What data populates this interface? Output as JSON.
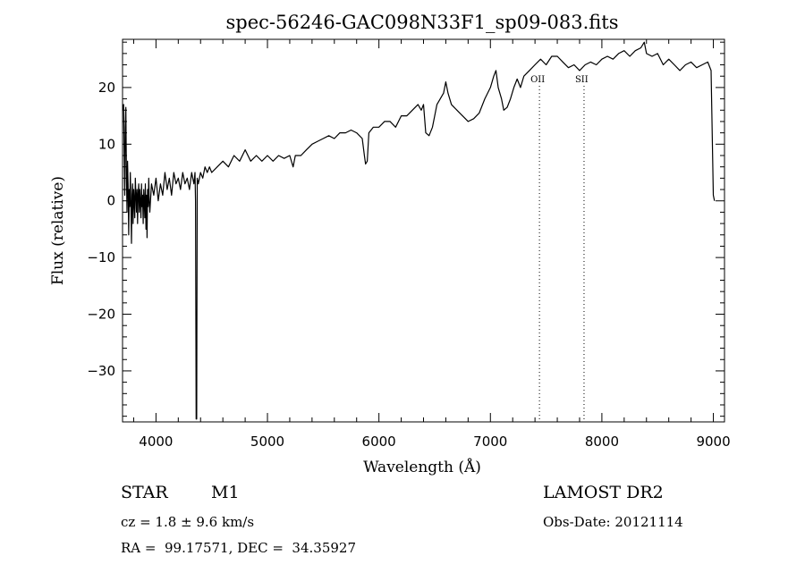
{
  "chart_data": {
    "type": "line",
    "title": "spec-56246-GAC098N33F1_sp09-083.fits",
    "xlabel": "Wavelength (Å)",
    "ylabel": "Flux (relative)",
    "xlim": [
      3700,
      9100
    ],
    "ylim": [
      -39,
      28.5
    ],
    "x_ticks": [
      4000,
      5000,
      6000,
      7000,
      8000,
      9000
    ],
    "y_ticks": [
      -30,
      -20,
      -10,
      0,
      10,
      20
    ],
    "x_tick_labels": [
      "4000",
      "5000",
      "6000",
      "7000",
      "8000",
      "9000"
    ],
    "y_tick_labels": [
      "−30",
      "−20",
      "−10",
      "0",
      "10",
      "20"
    ],
    "spectral_lines": [
      {
        "label": "OII",
        "wavelength": 7440
      },
      {
        "label": "SII",
        "wavelength": 7840
      }
    ],
    "series": [
      {
        "name": "flux",
        "points": [
          [
            3700,
            16
          ],
          [
            3710,
            17
          ],
          [
            3715,
            8
          ],
          [
            3720,
            1
          ],
          [
            3725,
            13
          ],
          [
            3730,
            16.5
          ],
          [
            3735,
            4
          ],
          [
            3740,
            -2
          ],
          [
            3745,
            7
          ],
          [
            3750,
            3
          ],
          [
            3755,
            -6
          ],
          [
            3760,
            2
          ],
          [
            3765,
            -1
          ],
          [
            3770,
            5
          ],
          [
            3775,
            0
          ],
          [
            3780,
            -7.5
          ],
          [
            3785,
            1
          ],
          [
            3790,
            3
          ],
          [
            3795,
            -4
          ],
          [
            3800,
            2
          ],
          [
            3805,
            0
          ],
          [
            3810,
            -3
          ],
          [
            3815,
            4
          ],
          [
            3820,
            1
          ],
          [
            3825,
            -2
          ],
          [
            3830,
            2
          ],
          [
            3835,
            -4
          ],
          [
            3840,
            1
          ],
          [
            3845,
            3
          ],
          [
            3850,
            -2
          ],
          [
            3855,
            2
          ],
          [
            3860,
            0
          ],
          [
            3865,
            -3
          ],
          [
            3870,
            3
          ],
          [
            3875,
            -1
          ],
          [
            3880,
            1
          ],
          [
            3885,
            -4
          ],
          [
            3890,
            2
          ],
          [
            3895,
            0
          ],
          [
            3900,
            -3
          ],
          [
            3905,
            3
          ],
          [
            3910,
            -5
          ],
          [
            3915,
            1
          ],
          [
            3920,
            -6.5
          ],
          [
            3925,
            2
          ],
          [
            3930,
            -1
          ],
          [
            3935,
            4
          ],
          [
            3940,
            0
          ],
          [
            3945,
            -2
          ],
          [
            3960,
            3
          ],
          [
            3980,
            1
          ],
          [
            4000,
            4
          ],
          [
            4020,
            0
          ],
          [
            4040,
            3
          ],
          [
            4060,
            1
          ],
          [
            4080,
            5
          ],
          [
            4100,
            2
          ],
          [
            4120,
            4
          ],
          [
            4140,
            1
          ],
          [
            4160,
            5
          ],
          [
            4180,
            3
          ],
          [
            4200,
            4
          ],
          [
            4220,
            2
          ],
          [
            4240,
            5
          ],
          [
            4260,
            3
          ],
          [
            4280,
            4
          ],
          [
            4300,
            2
          ],
          [
            4320,
            5
          ],
          [
            4330,
            4
          ],
          [
            4340,
            3
          ],
          [
            4350,
            5
          ],
          [
            4355,
            0
          ],
          [
            4360,
            -38.5
          ],
          [
            4365,
            -38.5
          ],
          [
            4370,
            4
          ],
          [
            4380,
            3
          ],
          [
            4400,
            5
          ],
          [
            4420,
            4
          ],
          [
            4440,
            6
          ],
          [
            4460,
            5
          ],
          [
            4480,
            6
          ],
          [
            4500,
            5
          ],
          [
            4550,
            6
          ],
          [
            4600,
            7
          ],
          [
            4650,
            6
          ],
          [
            4700,
            8
          ],
          [
            4750,
            7
          ],
          [
            4800,
            9
          ],
          [
            4850,
            7
          ],
          [
            4900,
            8
          ],
          [
            4950,
            7
          ],
          [
            5000,
            8
          ],
          [
            5050,
            7
          ],
          [
            5100,
            8
          ],
          [
            5150,
            7.5
          ],
          [
            5200,
            8
          ],
          [
            5230,
            6
          ],
          [
            5250,
            8
          ],
          [
            5300,
            8
          ],
          [
            5350,
            9
          ],
          [
            5400,
            10
          ],
          [
            5450,
            10.5
          ],
          [
            5500,
            11
          ],
          [
            5550,
            11.5
          ],
          [
            5600,
            11
          ],
          [
            5650,
            12
          ],
          [
            5700,
            12
          ],
          [
            5750,
            12.5
          ],
          [
            5800,
            12
          ],
          [
            5850,
            11
          ],
          [
            5870,
            8
          ],
          [
            5880,
            6.5
          ],
          [
            5895,
            7
          ],
          [
            5910,
            12
          ],
          [
            5950,
            13
          ],
          [
            6000,
            13
          ],
          [
            6050,
            14
          ],
          [
            6100,
            14
          ],
          [
            6150,
            13
          ],
          [
            6200,
            15
          ],
          [
            6250,
            15
          ],
          [
            6300,
            16
          ],
          [
            6350,
            17
          ],
          [
            6380,
            16
          ],
          [
            6400,
            17
          ],
          [
            6420,
            12
          ],
          [
            6450,
            11.5
          ],
          [
            6480,
            13
          ],
          [
            6520,
            17
          ],
          [
            6550,
            18
          ],
          [
            6580,
            19
          ],
          [
            6600,
            21
          ],
          [
            6620,
            19
          ],
          [
            6650,
            17
          ],
          [
            6700,
            16
          ],
          [
            6750,
            15
          ],
          [
            6800,
            14
          ],
          [
            6850,
            14.5
          ],
          [
            6900,
            15.5
          ],
          [
            6950,
            18
          ],
          [
            7000,
            20
          ],
          [
            7030,
            22
          ],
          [
            7050,
            23
          ],
          [
            7070,
            20
          ],
          [
            7100,
            18
          ],
          [
            7120,
            16
          ],
          [
            7150,
            16.5
          ],
          [
            7180,
            18
          ],
          [
            7210,
            20
          ],
          [
            7240,
            21.5
          ],
          [
            7270,
            20
          ],
          [
            7300,
            22
          ],
          [
            7350,
            23
          ],
          [
            7400,
            24
          ],
          [
            7450,
            25
          ],
          [
            7500,
            24
          ],
          [
            7550,
            25.5
          ],
          [
            7600,
            25.5
          ],
          [
            7650,
            24.5
          ],
          [
            7700,
            23.5
          ],
          [
            7750,
            24
          ],
          [
            7800,
            23
          ],
          [
            7850,
            24
          ],
          [
            7900,
            24.5
          ],
          [
            7950,
            24
          ],
          [
            8000,
            25
          ],
          [
            8050,
            25.5
          ],
          [
            8100,
            25
          ],
          [
            8150,
            26
          ],
          [
            8200,
            26.5
          ],
          [
            8250,
            25.5
          ],
          [
            8300,
            26.5
          ],
          [
            8350,
            27
          ],
          [
            8380,
            28
          ],
          [
            8400,
            26
          ],
          [
            8450,
            25.5
          ],
          [
            8500,
            26
          ],
          [
            8550,
            24
          ],
          [
            8600,
            25
          ],
          [
            8650,
            24
          ],
          [
            8700,
            23
          ],
          [
            8750,
            24
          ],
          [
            8800,
            24.5
          ],
          [
            8850,
            23.5
          ],
          [
            8900,
            24
          ],
          [
            8950,
            24.5
          ],
          [
            8980,
            23
          ],
          [
            9000,
            1
          ],
          [
            9010,
            0
          ]
        ]
      }
    ]
  },
  "info": {
    "object_class": "STAR",
    "subclass": "M1",
    "survey": "LAMOST DR2",
    "cz": "cz = 1.8 ± 9.6 km/s",
    "obs_date": "Obs-Date: 20121114",
    "coords": "RA =  99.17571, DEC =  34.35927"
  }
}
